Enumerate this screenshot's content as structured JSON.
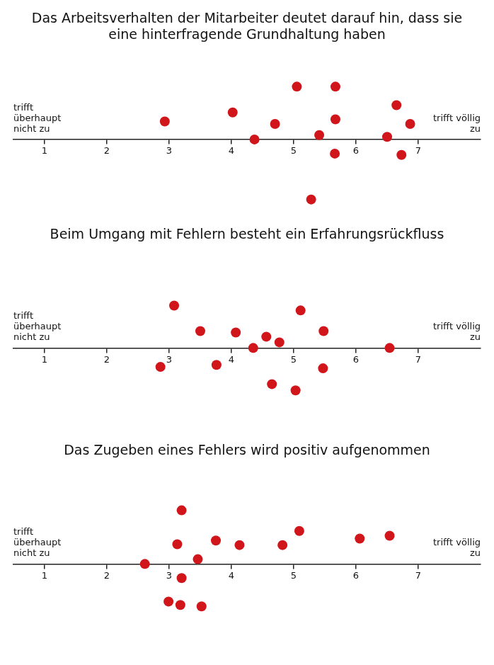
{
  "chart_data": [
    {
      "type": "scatter",
      "title": "Das Arbeitsverhalten der Mitarbeiter deutet darauf hin, dass sie eine hinterfragende Grundhaltung haben",
      "annotations": [
        "trifft überhaupt nicht zu",
        "trifft völlig zu"
      ],
      "x": [
        2.93,
        4.02,
        4.37,
        4.7,
        5.05,
        5.41,
        5.28,
        5.67,
        5.67,
        5.66,
        6.5,
        6.65,
        6.87,
        6.73
      ],
      "values": [
        0.7,
        1.05,
        0,
        0.6,
        2.05,
        0.17,
        -2.33,
        2.05,
        0.78,
        -0.55,
        0.1,
        1.33,
        0.6,
        -0.6
      ],
      "xlim": [
        0.5,
        8
      ],
      "xticks": [
        1,
        2,
        3,
        4,
        5,
        6,
        7
      ],
      "ylim": [
        -3,
        3.5
      ],
      "yticks": [],
      "tick_labels": "x",
      "grid": false,
      "color": "#d0161b",
      "marker": "circle"
    },
    {
      "type": "scatter",
      "title": "Beim Umgang mit Fehlern besteht ein Erfahrungsrückfluss",
      "annotations": [
        "trifft überhaupt nicht zu",
        "trifft völlig zu"
      ],
      "x": [
        2.86,
        3.08,
        3.5,
        3.76,
        4.07,
        4.35,
        4.56,
        4.77,
        4.65,
        5.03,
        5.11,
        5.48,
        5.47,
        6.54
      ],
      "values": [
        -0.67,
        1.5,
        0.6,
        -0.6,
        0.55,
        0,
        0.4,
        0.2,
        -1.28,
        -1.5,
        1.33,
        0.6,
        -0.72,
        0
      ],
      "xlim": [
        0.5,
        8
      ],
      "xticks": [
        1,
        2,
        3,
        4,
        5,
        6,
        7
      ],
      "ylim": [
        -3,
        3.5
      ],
      "yticks": [],
      "tick_labels": "x",
      "grid": false,
      "color": "#d0161b",
      "marker": "circle"
    },
    {
      "type": "scatter",
      "title": "Das Zugeben eines Fehlers wird positiv aufgenommen",
      "annotations": [
        "trifft überhaupt nicht zu",
        "trifft völlig zu"
      ],
      "x": [
        2.61,
        3.2,
        3.13,
        3.2,
        2.99,
        3.18,
        3.46,
        3.52,
        3.75,
        4.13,
        4.82,
        5.09,
        6.06,
        6.54
      ],
      "values": [
        0,
        1.9,
        0.7,
        -0.5,
        -1.33,
        -1.45,
        0.17,
        -1.5,
        0.83,
        0.67,
        0.67,
        1.17,
        0.9,
        1.0
      ],
      "xlim": [
        0.5,
        8
      ],
      "xticks": [
        1,
        2,
        3,
        4,
        5,
        6,
        7
      ],
      "ylim": [
        -3,
        3.5
      ],
      "yticks": [],
      "tick_labels": "x",
      "grid": false,
      "color": "#d0161b",
      "marker": "circle"
    }
  ]
}
